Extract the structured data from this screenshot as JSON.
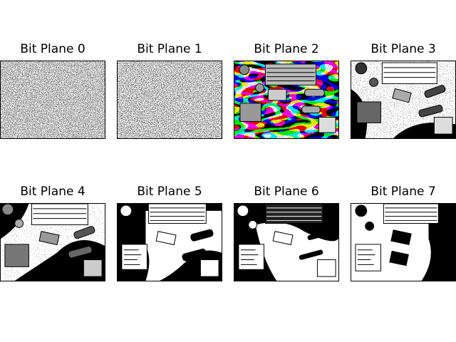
{
  "figure": {
    "panels": [
      {
        "title": "Bit Plane 0"
      },
      {
        "title": "Bit Plane 1"
      },
      {
        "title": "Bit Plane 2"
      },
      {
        "title": "Bit Plane 3"
      },
      {
        "title": "Bit Plane 4"
      },
      {
        "title": "Bit Plane 5"
      },
      {
        "title": "Bit Plane 6"
      },
      {
        "title": "Bit Plane 7"
      }
    ]
  }
}
